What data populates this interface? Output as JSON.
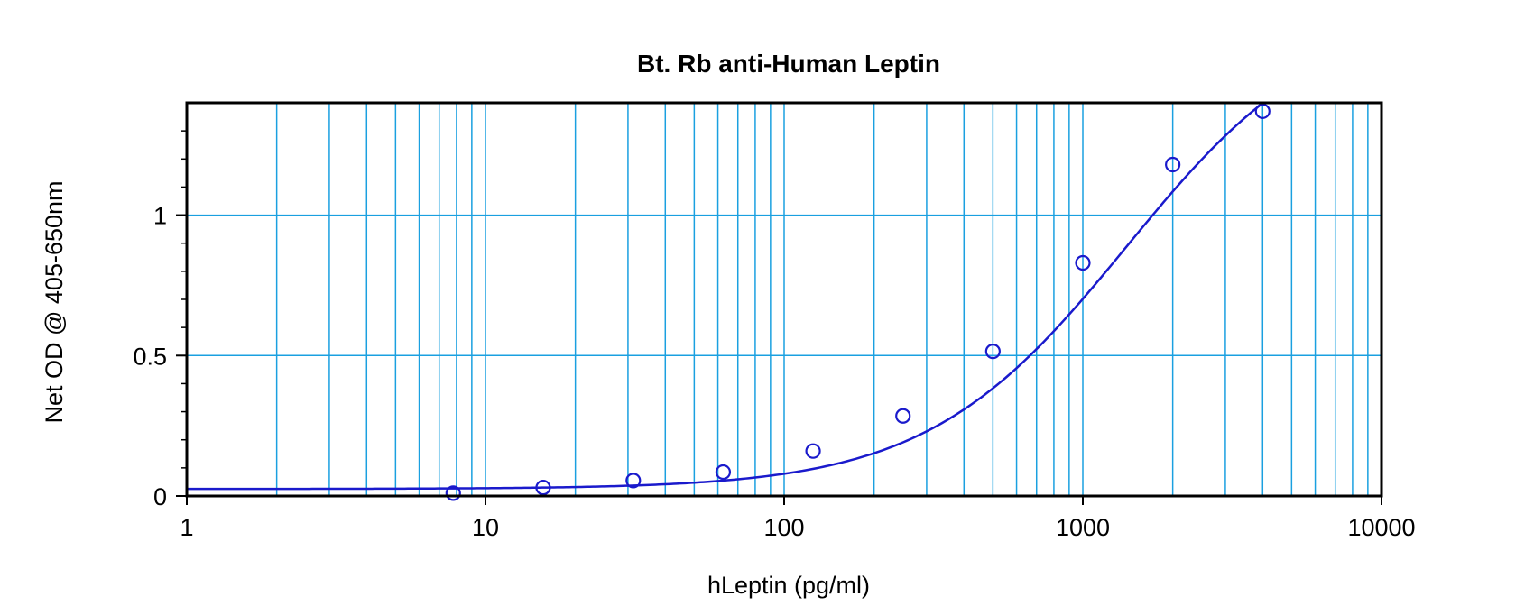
{
  "chart_data": {
    "type": "scatter",
    "title": "Bt. Rb anti-Human Leptin",
    "xlabel": "hLeptin (pg/ml)",
    "ylabel": "Net OD @ 405-650nm",
    "xscale": "log",
    "xlim": [
      1,
      10000
    ],
    "ylim": [
      0,
      1.4
    ],
    "grid": true,
    "x_ticks": [
      "1",
      "10",
      "100",
      "1000",
      "10000"
    ],
    "y_ticks": [
      "0",
      "0.5",
      "1"
    ],
    "points": [
      {
        "x": 7.8,
        "y": 0.01
      },
      {
        "x": 15.6,
        "y": 0.03
      },
      {
        "x": 31.25,
        "y": 0.055
      },
      {
        "x": 62.5,
        "y": 0.085
      },
      {
        "x": 125,
        "y": 0.16
      },
      {
        "x": 250,
        "y": 0.285
      },
      {
        "x": 500,
        "y": 0.515
      },
      {
        "x": 1000,
        "y": 0.83
      },
      {
        "x": 2000,
        "y": 1.18
      },
      {
        "x": 4000,
        "y": 1.37
      }
    ],
    "fit_curve": {
      "type": "4-parameter logistic",
      "bottom": 0.025,
      "top": 1.75,
      "ec50": 1400,
      "hill": 1.3
    },
    "colors": {
      "series": "#1a1acc",
      "grid": "#1aa0e0",
      "frame": "#000000"
    }
  }
}
